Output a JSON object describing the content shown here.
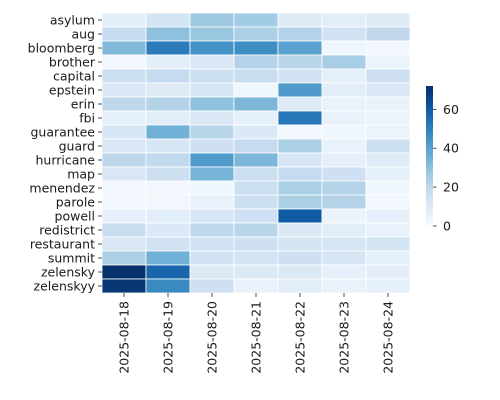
{
  "chart_data": {
    "type": "heatmap",
    "title": "",
    "xlabel": "",
    "ylabel": "",
    "colormap": "Blues",
    "color_range": [
      0,
      72
    ],
    "colorbar_ticks": [
      0,
      20,
      40,
      60
    ],
    "grid": false,
    "x": [
      "2025-08-18",
      "2025-08-19",
      "2025-08-20",
      "2025-08-21",
      "2025-08-22",
      "2025-08-23",
      "2025-08-24"
    ],
    "y": [
      "asylum",
      "aug",
      "bloomberg",
      "brother",
      "capital",
      "epstein",
      "erin",
      "fbi",
      "guarantee",
      "guard",
      "hurricane",
      "map",
      "menendez",
      "parole",
      "powell",
      "redistrict",
      "restaurant",
      "summit",
      "zelensky",
      "zelenskyy"
    ],
    "values": [
      [
        8,
        13,
        27,
        26,
        9,
        8,
        9
      ],
      [
        18,
        30,
        28,
        24,
        22,
        14,
        19
      ],
      [
        32,
        51,
        45,
        46,
        40,
        3,
        2
      ],
      [
        2,
        8,
        11,
        22,
        21,
        25,
        4
      ],
      [
        16,
        18,
        16,
        17,
        14,
        7,
        15
      ],
      [
        10,
        9,
        12,
        3,
        42,
        8,
        11
      ],
      [
        20,
        22,
        30,
        33,
        9,
        5,
        5
      ],
      [
        6,
        8,
        11,
        6,
        52,
        5,
        4
      ],
      [
        12,
        35,
        21,
        10,
        2,
        3,
        4
      ],
      [
        11,
        12,
        15,
        18,
        24,
        5,
        16
      ],
      [
        20,
        19,
        42,
        33,
        12,
        7,
        9
      ],
      [
        11,
        16,
        34,
        16,
        18,
        15,
        6
      ],
      [
        2,
        2,
        3,
        16,
        24,
        22,
        3
      ],
      [
        2,
        2,
        5,
        16,
        24,
        22,
        2
      ],
      [
        6,
        8,
        12,
        15,
        60,
        4,
        6
      ],
      [
        17,
        10,
        20,
        21,
        10,
        8,
        5
      ],
      [
        11,
        14,
        14,
        15,
        13,
        12,
        13
      ],
      [
        24,
        35,
        14,
        13,
        15,
        12,
        7
      ],
      [
        72,
        57,
        10,
        10,
        10,
        6,
        7
      ],
      [
        70,
        47,
        15,
        5,
        8,
        5,
        6
      ]
    ]
  }
}
